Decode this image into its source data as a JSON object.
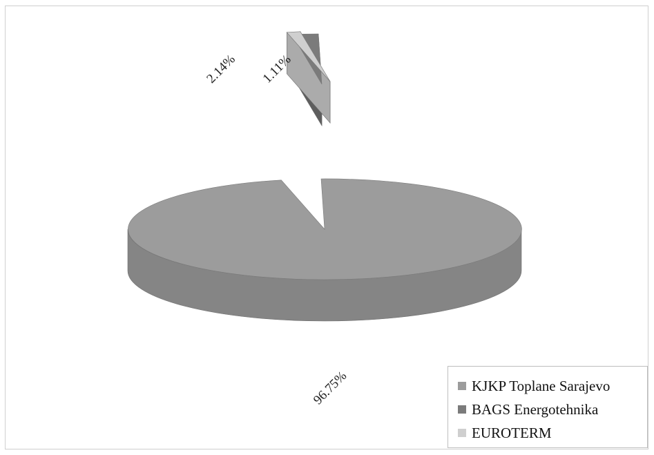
{
  "chart_data": {
    "type": "pie",
    "style": "3d-exploded",
    "slices": [
      {
        "name": "KJKP Toplane Sarajevo",
        "value": 96.75,
        "label": "96.75%",
        "color": "#9c9c9c",
        "side_color": "#858585"
      },
      {
        "name": "BAGS Energotehnika",
        "value": 2.14,
        "label": "2.14%",
        "color": "#7b7b7b",
        "side_color": "#5e5e5e"
      },
      {
        "name": "EUROTERM",
        "value": 1.11,
        "label": "1.11%",
        "color": "#cfcfcf",
        "side_color": "#ababab"
      }
    ],
    "legend": {
      "placement": "bottom-right",
      "items": [
        "KJKP Toplane Sarajevo",
        "BAGS Energotehnika",
        "EUROTERM"
      ]
    }
  }
}
